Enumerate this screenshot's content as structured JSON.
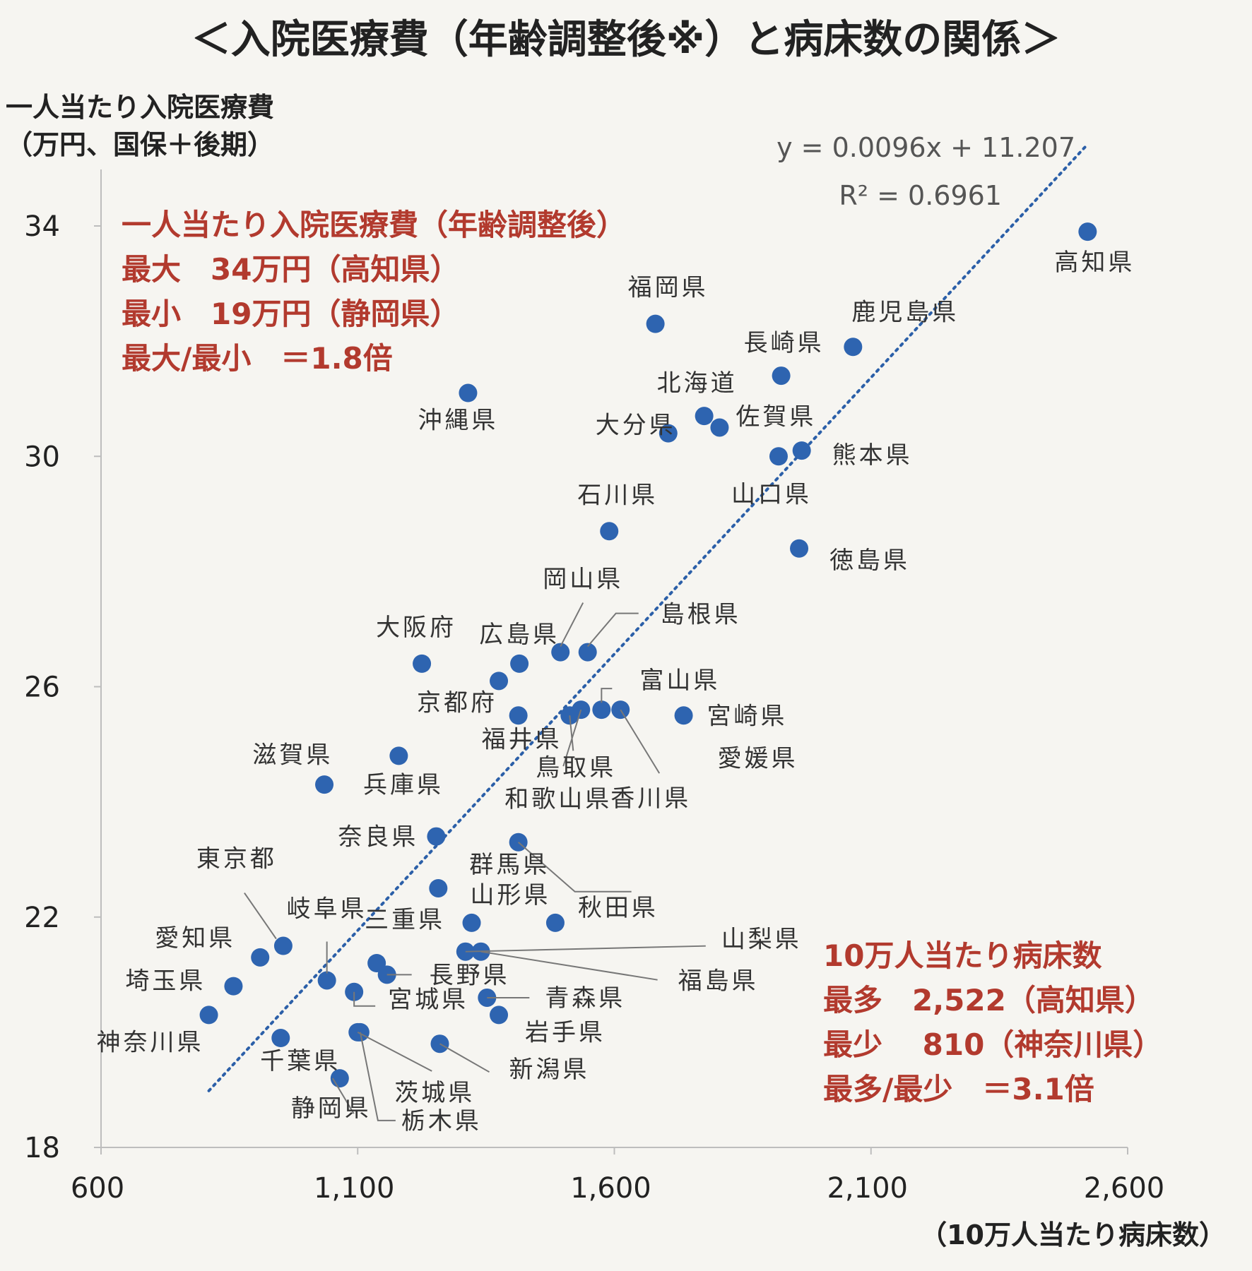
{
  "chart_data": {
    "type": "scatter",
    "title": "＜入院医療費（年齢調整後※）と病床数の関係＞",
    "ylabel_lines": [
      "一人当たり入院医療費",
      "（万円、国保＋後期）"
    ],
    "xlabel": "（10万人当たり病床数）",
    "xlim": [
      600,
      2600
    ],
    "ylim": [
      18,
      34
    ],
    "xticks": [
      "600",
      "1,100",
      "1,600",
      "2,100",
      "2,600"
    ],
    "yticks": [
      "34",
      "30",
      "26",
      "22",
      "18"
    ],
    "xtick_values": [
      600,
      1100,
      1600,
      2100,
      2600
    ],
    "ytick_values": [
      34,
      30,
      26,
      22,
      18
    ],
    "trendline": {
      "slope": 0.0096,
      "intercept": 11.207,
      "x_range": [
        810,
        2522
      ],
      "equation": "y = 0.0096x + 11.207",
      "r2": "R² = 0.6961",
      "color": "#2b5fa8"
    },
    "marker_color": "#2e64b0",
    "points": [
      {
        "name": "高知県",
        "x": 2522,
        "y": 33.9
      },
      {
        "name": "福岡県",
        "x": 1680,
        "y": 32.3
      },
      {
        "name": "鹿児島県",
        "x": 2065,
        "y": 31.9
      },
      {
        "name": "長崎県",
        "x": 1925,
        "y": 31.4
      },
      {
        "name": "沖縄県",
        "x": 1315,
        "y": 31.1
      },
      {
        "name": "北海道",
        "x": 1775,
        "y": 30.7
      },
      {
        "name": "佐賀県",
        "x": 1805,
        "y": 30.5
      },
      {
        "name": "大分県",
        "x": 1705,
        "y": 30.4
      },
      {
        "name": "熊本県",
        "x": 1965,
        "y": 30.1
      },
      {
        "name": "山口県",
        "x": 1920,
        "y": 30.0
      },
      {
        "name": "石川県",
        "x": 1590,
        "y": 28.7
      },
      {
        "name": "徳島県",
        "x": 1960,
        "y": 28.4
      },
      {
        "name": "岡山県",
        "x": 1495,
        "y": 26.6
      },
      {
        "name": "島根県",
        "x": 1548,
        "y": 26.6
      },
      {
        "name": "大阪府",
        "x": 1225,
        "y": 26.4
      },
      {
        "name": "広島県",
        "x": 1415,
        "y": 26.4
      },
      {
        "name": "京都府",
        "x": 1375,
        "y": 26.1
      },
      {
        "name": "福井県",
        "x": 1413,
        "y": 25.5
      },
      {
        "name": "鳥取県",
        "x": 1513,
        "y": 25.5
      },
      {
        "name": "和歌山県",
        "x": 1535,
        "y": 25.6
      },
      {
        "name": "富山県",
        "x": 1575,
        "y": 25.6
      },
      {
        "name": "香川県",
        "x": 1612,
        "y": 25.6
      },
      {
        "name": "宮崎県",
        "x": 1735,
        "y": 25.5
      },
      {
        "name": "滋賀県",
        "x": 1180,
        "y": 24.8
      },
      {
        "name": "兵庫県",
        "x": 1035,
        "y": 24.3
      },
      {
        "name": "奈良県",
        "x": 1253,
        "y": 23.4
      },
      {
        "name": "愛媛県",
        "x": 1413,
        "y": 23.3
      },
      {
        "name": "群馬県",
        "x": 1257,
        "y": 22.5
      },
      {
        "name": "山形県",
        "x": 1322,
        "y": 21.9
      },
      {
        "name": "秋田県",
        "x": 1485,
        "y": 21.9
      },
      {
        "name": "東京都",
        "x": 955,
        "y": 21.5
      },
      {
        "name": "愛知県",
        "x": 910,
        "y": 21.3
      },
      {
        "name": "山梨県",
        "x": 1310,
        "y": 21.4
      },
      {
        "name": "福島県",
        "x": 1340,
        "y": 21.4
      },
      {
        "name": "三重県",
        "x": 1137,
        "y": 21.2
      },
      {
        "name": "長野県",
        "x": 1157,
        "y": 21.0
      },
      {
        "name": "岐阜県",
        "x": 1040,
        "y": 20.9
      },
      {
        "name": "埼玉県",
        "x": 858,
        "y": 20.8
      },
      {
        "name": "宮城県",
        "x": 1093,
        "y": 20.7
      },
      {
        "name": "青森県",
        "x": 1352,
        "y": 20.6
      },
      {
        "name": "神奈川県",
        "x": 810,
        "y": 20.3
      },
      {
        "name": "岩手県",
        "x": 1375,
        "y": 20.3
      },
      {
        "name": "茨城県",
        "x": 1100,
        "y": 20.0
      },
      {
        "name": "千葉県",
        "x": 950,
        "y": 19.9
      },
      {
        "name": "新潟県",
        "x": 1260,
        "y": 19.8
      },
      {
        "name": "静岡県",
        "x": 1065,
        "y": 19.2
      },
      {
        "name": "栃木県",
        "x": 1105,
        "y": 20.0
      }
    ],
    "annotation_top_left": [
      "一人当たり入院医療費（年齢調整後）",
      "最大　34万円（高知県）",
      "最小　19万円（静岡県）",
      "最大/最小　＝1.8倍"
    ],
    "annotation_bottom_right": [
      "10万人当たり病床数",
      "最多　2,522（高知県）",
      "最少　 810（神奈川県）",
      "最多/最少　＝3.1倍"
    ],
    "annotation_color": "#b23a2e"
  }
}
